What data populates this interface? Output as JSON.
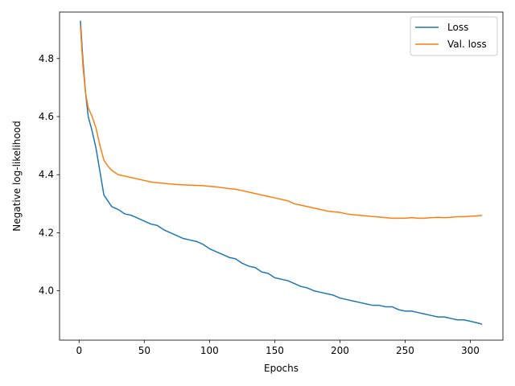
{
  "chart_data": {
    "type": "line",
    "title": "",
    "xlabel": "Epochs",
    "ylabel": "Negative log-likelihood",
    "xlim": [
      -15,
      325
    ],
    "ylim": [
      3.83,
      4.96
    ],
    "xticks": [
      0,
      50,
      100,
      150,
      200,
      250,
      300
    ],
    "yticks": [
      4.0,
      4.2,
      4.4,
      4.6,
      4.8
    ],
    "grid": false,
    "legend_position": "top-right",
    "series": [
      {
        "name": "Loss",
        "color": "#1f77b4",
        "x": [
          1,
          3,
          5,
          7,
          10,
          13,
          16,
          19,
          22,
          25,
          30,
          35,
          40,
          45,
          50,
          55,
          60,
          65,
          70,
          75,
          80,
          85,
          90,
          95,
          100,
          105,
          110,
          115,
          120,
          125,
          130,
          135,
          140,
          145,
          150,
          155,
          160,
          165,
          170,
          175,
          180,
          185,
          190,
          195,
          200,
          205,
          210,
          215,
          220,
          225,
          230,
          235,
          240,
          245,
          250,
          255,
          260,
          265,
          270,
          275,
          280,
          285,
          290,
          295,
          300,
          305,
          309
        ],
        "values": [
          4.93,
          4.79,
          4.68,
          4.6,
          4.55,
          4.49,
          4.41,
          4.33,
          4.31,
          4.29,
          4.28,
          4.265,
          4.26,
          4.25,
          4.24,
          4.23,
          4.225,
          4.21,
          4.2,
          4.19,
          4.18,
          4.175,
          4.17,
          4.16,
          4.145,
          4.135,
          4.125,
          4.115,
          4.11,
          4.095,
          4.085,
          4.08,
          4.065,
          4.06,
          4.045,
          4.04,
          4.035,
          4.025,
          4.015,
          4.01,
          4.0,
          3.995,
          3.99,
          3.985,
          3.975,
          3.97,
          3.965,
          3.96,
          3.955,
          3.95,
          3.95,
          3.945,
          3.945,
          3.935,
          3.93,
          3.93,
          3.925,
          3.92,
          3.915,
          3.91,
          3.91,
          3.905,
          3.9,
          3.9,
          3.895,
          3.89,
          3.885
        ]
      },
      {
        "name": "Val. loss",
        "color": "#ff7f0e",
        "x": [
          1,
          3,
          5,
          7,
          10,
          13,
          16,
          19,
          22,
          25,
          30,
          35,
          40,
          45,
          50,
          55,
          60,
          65,
          70,
          75,
          80,
          85,
          90,
          95,
          100,
          105,
          110,
          115,
          120,
          125,
          130,
          135,
          140,
          145,
          150,
          155,
          160,
          165,
          170,
          175,
          180,
          185,
          190,
          195,
          200,
          205,
          210,
          215,
          220,
          225,
          230,
          235,
          240,
          245,
          250,
          255,
          260,
          265,
          270,
          275,
          280,
          285,
          290,
          295,
          300,
          305,
          309
        ],
        "values": [
          4.91,
          4.77,
          4.68,
          4.63,
          4.6,
          4.56,
          4.5,
          4.45,
          4.43,
          4.415,
          4.4,
          4.395,
          4.39,
          4.385,
          4.38,
          4.375,
          4.372,
          4.37,
          4.368,
          4.366,
          4.365,
          4.364,
          4.363,
          4.362,
          4.36,
          4.358,
          4.355,
          4.352,
          4.35,
          4.345,
          4.34,
          4.335,
          4.33,
          4.325,
          4.32,
          4.315,
          4.31,
          4.3,
          4.295,
          4.29,
          4.285,
          4.28,
          4.275,
          4.272,
          4.27,
          4.265,
          4.262,
          4.26,
          4.258,
          4.256,
          4.254,
          4.252,
          4.25,
          4.25,
          4.25,
          4.252,
          4.25,
          4.25,
          4.252,
          4.253,
          4.252,
          4.253,
          4.255,
          4.255,
          4.257,
          4.258,
          4.26
        ]
      }
    ]
  }
}
